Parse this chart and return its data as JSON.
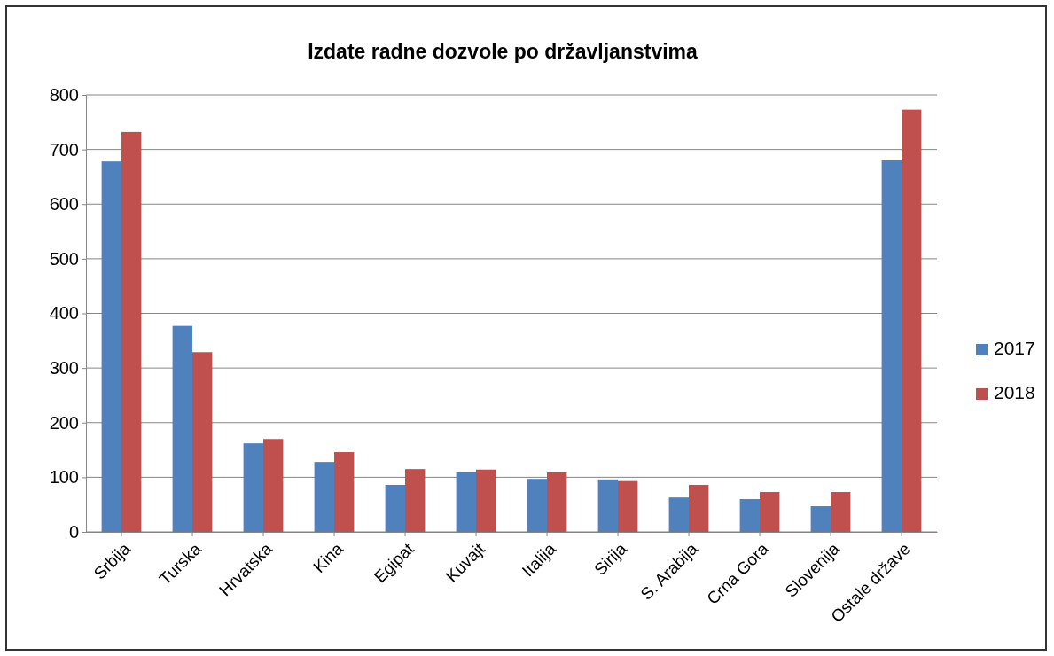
{
  "chart_data": {
    "type": "bar",
    "title": "Izdate radne dozvole po državljanstvima",
    "categories": [
      "Srbija",
      "Turska",
      "Hrvatska",
      "Kina",
      "Egipat",
      "Kuvajt",
      "Italija",
      "Sirija",
      "S. Arabija",
      "Crna Gora",
      "Slovenija",
      "Ostale države"
    ],
    "series": [
      {
        "name": "2017",
        "color": "#4f81bd",
        "values": [
          678,
          377,
          162,
          128,
          86,
          109,
          97,
          96,
          63,
          60,
          47,
          680
        ]
      },
      {
        "name": "2018",
        "color": "#c0504d",
        "values": [
          732,
          329,
          170,
          146,
          115,
          114,
          109,
          93,
          86,
          73,
          73,
          773
        ]
      }
    ],
    "ylim": [
      0,
      800
    ],
    "yticks": [
      0,
      100,
      200,
      300,
      400,
      500,
      600,
      700,
      800
    ],
    "grid": "y",
    "legend": "right"
  }
}
